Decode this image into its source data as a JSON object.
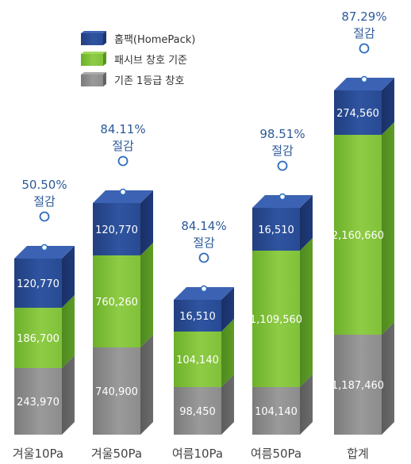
{
  "chart_data": {
    "type": "bar",
    "stacked": true,
    "three_d": true,
    "categories": [
      "겨울10Pa",
      "겨울50Pa",
      "여름10Pa",
      "여름50Pa",
      "합계"
    ],
    "series": [
      {
        "name": "기존 1등급 창호",
        "values": [
          243970,
          740900,
          98450,
          104140,
          1187460
        ],
        "labels": [
          "243,970",
          "740,900",
          "98,450",
          "104,140",
          "1,187,460"
        ],
        "color": "#8a8a8a"
      },
      {
        "name": "패시브 창호 기준",
        "values": [
          186700,
          760260,
          104140,
          1109560,
          2160660
        ],
        "labels": [
          "186,700",
          "760,260",
          "104,140",
          "1,109,560",
          "2,160,660"
        ],
        "color": "#79bd34"
      },
      {
        "name": "홈팩(HomePack)",
        "values": [
          120770,
          120770,
          16510,
          16510,
          274560
        ],
        "labels": [
          "120,770",
          "120,770",
          "16,510",
          "16,510",
          "274,560"
        ],
        "color": "#2a4c93"
      }
    ],
    "annotations": [
      {
        "category": "겨울10Pa",
        "percent": "50.50%",
        "text": "절감"
      },
      {
        "category": "겨울50Pa",
        "percent": "84.11%",
        "text": "절감"
      },
      {
        "category": "여름10Pa",
        "percent": "84.14%",
        "text": "절감"
      },
      {
        "category": "여름50Pa",
        "percent": "98.51%",
        "text": "절감"
      },
      {
        "category": "합계",
        "percent": "87.29%",
        "text": "절감"
      }
    ],
    "legend_position": "top-left",
    "grid": false,
    "colors": {
      "annotation_text": "#2d5a9a",
      "category_text": "#444444",
      "value_text": "#ffffff",
      "pin_stroke": "#2d6bbf"
    }
  }
}
